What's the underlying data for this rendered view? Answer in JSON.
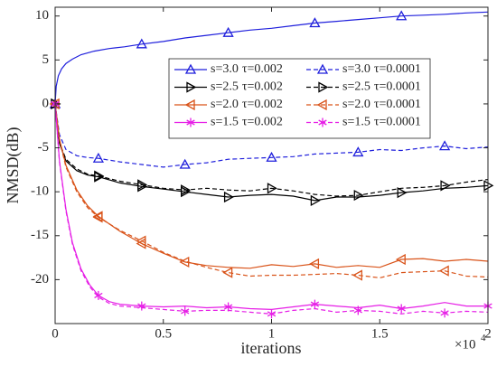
{
  "chart_data": {
    "type": "line",
    "title": "",
    "xlabel": "iterations",
    "ylabel": "NMSD(dB)",
    "x_exponent_label": "×10",
    "x_exponent_power": "4",
    "xlim": [
      0,
      2
    ],
    "ylim": [
      -25,
      11
    ],
    "x_ticks": [
      0,
      0.5,
      1,
      1.5,
      2
    ],
    "x_tick_labels": [
      "0",
      "0.5",
      "1",
      "1.5",
      "2"
    ],
    "y_ticks": [
      10,
      5,
      0,
      -5,
      -10,
      -15,
      -20
    ],
    "y_tick_labels": [
      "10",
      "5",
      "0",
      "-5",
      "-10",
      "-15",
      "-20"
    ],
    "grid": false,
    "legend_position": "top-right",
    "series": [
      {
        "name": "s=3.0 τ=0.002",
        "label_s": "s=3.0",
        "label_tau": "τ=0.002",
        "color": "#1f1fdc",
        "dash": "solid",
        "marker": "triangle-up",
        "x": [
          0,
          0.005,
          0.015,
          0.03,
          0.05,
          0.08,
          0.12,
          0.18,
          0.25,
          0.32,
          0.4,
          0.5,
          0.6,
          0.7,
          0.8,
          0.9,
          1.0,
          1.1,
          1.2,
          1.3,
          1.4,
          1.5,
          1.6,
          1.7,
          1.8,
          1.9,
          2.0
        ],
        "y": [
          0,
          2.0,
          3.2,
          4.0,
          4.6,
          5.1,
          5.6,
          6.0,
          6.3,
          6.5,
          6.8,
          7.1,
          7.5,
          7.8,
          8.1,
          8.4,
          8.6,
          8.9,
          9.2,
          9.4,
          9.6,
          9.8,
          10.0,
          10.1,
          10.2,
          10.35,
          10.45
        ],
        "marker_x": [
          0,
          0.4,
          0.8,
          1.2,
          1.6
        ]
      },
      {
        "name": "s=3.0 τ=0.0001",
        "label_s": "s=3.0",
        "label_tau": "τ=0.0001",
        "color": "#1f1fdc",
        "dash": "dashed",
        "marker": "triangle-up",
        "x": [
          0,
          0.02,
          0.05,
          0.1,
          0.15,
          0.2,
          0.3,
          0.4,
          0.5,
          0.6,
          0.7,
          0.8,
          0.9,
          1.0,
          1.1,
          1.2,
          1.3,
          1.4,
          1.5,
          1.6,
          1.7,
          1.8,
          1.9,
          2.0
        ],
        "y": [
          0,
          -3.5,
          -5.2,
          -5.9,
          -6.1,
          -6.2,
          -6.6,
          -6.9,
          -7.2,
          -6.9,
          -6.7,
          -6.3,
          -6.2,
          -6.1,
          -6.0,
          -5.7,
          -5.6,
          -5.5,
          -5.2,
          -5.3,
          -5.0,
          -4.8,
          -5.1,
          -4.9
        ],
        "marker_x": [
          0,
          0.2,
          0.6,
          1.0,
          1.4,
          1.8
        ]
      },
      {
        "name": "s=2.5 τ=0.002",
        "label_s": "s=2.5",
        "label_tau": "τ=0.002",
        "color": "#000000",
        "dash": "solid",
        "marker": "triangle-right",
        "x": [
          0,
          0.02,
          0.05,
          0.1,
          0.15,
          0.2,
          0.3,
          0.4,
          0.5,
          0.6,
          0.7,
          0.8,
          0.9,
          1.0,
          1.1,
          1.2,
          1.3,
          1.4,
          1.5,
          1.6,
          1.7,
          1.8,
          1.9,
          2.0
        ],
        "y": [
          0,
          -4.5,
          -6.5,
          -7.6,
          -8.1,
          -8.3,
          -9.0,
          -9.4,
          -9.7,
          -10.0,
          -10.3,
          -10.6,
          -10.4,
          -10.3,
          -10.5,
          -11.0,
          -10.6,
          -10.6,
          -10.4,
          -10.1,
          -9.9,
          -9.6,
          -9.5,
          -9.3
        ],
        "marker_x": [
          0,
          0.2,
          0.4,
          0.6,
          0.8,
          1.2,
          1.6,
          2.0
        ]
      },
      {
        "name": "s=2.5 τ=0.0001",
        "label_s": "s=2.5",
        "label_tau": "τ=0.0001",
        "color": "#000000",
        "dash": "dashed",
        "marker": "triangle-right",
        "x": [
          0,
          0.02,
          0.05,
          0.1,
          0.15,
          0.2,
          0.3,
          0.4,
          0.5,
          0.6,
          0.7,
          0.8,
          0.9,
          1.0,
          1.1,
          1.2,
          1.3,
          1.4,
          1.5,
          1.6,
          1.7,
          1.8,
          1.9,
          2.0
        ],
        "y": [
          0,
          -4.4,
          -6.3,
          -7.4,
          -8.0,
          -8.2,
          -8.8,
          -9.2,
          -9.6,
          -9.8,
          -9.6,
          -9.8,
          -9.9,
          -9.6,
          -9.9,
          -10.3,
          -10.5,
          -10.4,
          -10.0,
          -9.6,
          -9.5,
          -9.3,
          -8.9,
          -8.6
        ],
        "marker_x": [
          0,
          0.2,
          0.4,
          0.6,
          1.0,
          1.4,
          1.8
        ]
      },
      {
        "name": "s=2.0 τ=0.002",
        "label_s": "s=2.0",
        "label_tau": "τ=0.002",
        "color": "#d95319",
        "dash": "solid",
        "marker": "triangle-left",
        "x": [
          0,
          0.02,
          0.05,
          0.1,
          0.15,
          0.2,
          0.3,
          0.4,
          0.5,
          0.6,
          0.7,
          0.8,
          0.9,
          1.0,
          1.1,
          1.2,
          1.3,
          1.4,
          1.5,
          1.6,
          1.7,
          1.8,
          1.9,
          2.0
        ],
        "y": [
          0,
          -4.0,
          -7.0,
          -9.8,
          -11.6,
          -12.8,
          -14.5,
          -15.9,
          -17.0,
          -18.0,
          -18.4,
          -18.6,
          -18.7,
          -18.3,
          -18.5,
          -18.2,
          -18.6,
          -18.4,
          -18.6,
          -17.7,
          -17.6,
          -17.9,
          -17.7,
          -17.9
        ],
        "marker_x": [
          0,
          0.2,
          0.4,
          0.6,
          1.2,
          1.6
        ]
      },
      {
        "name": "s=2.0 τ=0.0001",
        "label_s": "s=2.0",
        "label_tau": "τ=0.0001",
        "color": "#d95319",
        "dash": "dashed",
        "marker": "triangle-left",
        "x": [
          0,
          0.02,
          0.05,
          0.1,
          0.15,
          0.2,
          0.3,
          0.4,
          0.5,
          0.6,
          0.7,
          0.8,
          0.9,
          1.0,
          1.1,
          1.2,
          1.3,
          1.4,
          1.5,
          1.6,
          1.7,
          1.8,
          1.9,
          2.0
        ],
        "y": [
          0,
          -4.1,
          -7.2,
          -10.0,
          -11.8,
          -12.9,
          -14.4,
          -15.6,
          -16.9,
          -17.9,
          -18.6,
          -19.2,
          -19.6,
          -19.5,
          -19.5,
          -19.4,
          -19.3,
          -19.5,
          -19.8,
          -19.2,
          -19.1,
          -19.0,
          -19.6,
          -19.7
        ],
        "marker_x": [
          0,
          0.2,
          0.4,
          0.8,
          1.4,
          1.8
        ]
      },
      {
        "name": "s=1.5 τ=0.002",
        "label_s": "s=1.5",
        "label_tau": "τ=0.002",
        "color": "#e61ee6",
        "dash": "solid",
        "marker": "asterisk",
        "x": [
          0,
          0.02,
          0.05,
          0.08,
          0.12,
          0.16,
          0.2,
          0.25,
          0.3,
          0.4,
          0.5,
          0.6,
          0.7,
          0.8,
          0.9,
          1.0,
          1.1,
          1.2,
          1.3,
          1.4,
          1.5,
          1.6,
          1.7,
          1.8,
          1.9,
          2.0
        ],
        "y": [
          0,
          -6.5,
          -12.0,
          -15.8,
          -18.8,
          -20.6,
          -21.8,
          -22.5,
          -22.8,
          -23.0,
          -23.1,
          -23.0,
          -23.2,
          -23.1,
          -23.3,
          -23.4,
          -23.1,
          -22.8,
          -23.0,
          -23.2,
          -22.9,
          -23.3,
          -23.0,
          -22.6,
          -23.0,
          -23.0
        ],
        "marker_x": [
          0,
          0.2,
          0.4,
          0.8,
          1.2,
          1.6,
          2.0
        ]
      },
      {
        "name": "s=1.5 τ=0.0001",
        "label_s": "s=1.5",
        "label_tau": "τ=0.0001",
        "color": "#e61ee6",
        "dash": "dashed",
        "marker": "asterisk",
        "x": [
          0,
          0.02,
          0.05,
          0.08,
          0.12,
          0.16,
          0.2,
          0.25,
          0.3,
          0.4,
          0.5,
          0.6,
          0.7,
          0.8,
          0.9,
          1.0,
          1.1,
          1.2,
          1.3,
          1.4,
          1.5,
          1.6,
          1.7,
          1.8,
          1.9,
          2.0
        ],
        "y": [
          0,
          -6.6,
          -12.2,
          -16.0,
          -19.0,
          -20.8,
          -22.0,
          -22.7,
          -23.0,
          -23.2,
          -23.4,
          -23.6,
          -23.5,
          -23.5,
          -23.7,
          -23.9,
          -23.5,
          -23.3,
          -23.7,
          -23.5,
          -23.6,
          -23.9,
          -23.6,
          -23.8,
          -23.6,
          -23.7
        ],
        "marker_x": [
          0,
          0.6,
          1.0,
          1.4,
          1.8
        ]
      }
    ]
  }
}
